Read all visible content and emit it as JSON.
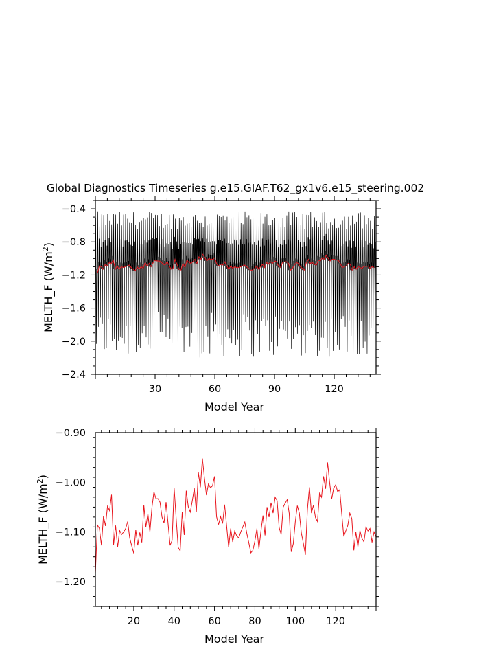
{
  "title": "Global Diagnostics Timeseries g.e15.GIAF.T62_gx1v6.e15_steering.002",
  "colors": {
    "annual": "#000000",
    "smoothed": "#e8141c",
    "axes": "#000000",
    "background": "#ffffff"
  },
  "chart_data": [
    {
      "type": "line",
      "xlabel": "Model Year",
      "ylabel": "MELTH_F (W/m²)",
      "ylabel_main": "MELTH_F  (W/m",
      "ylabel_sup": "2",
      "ylabel_close": ")",
      "xlim": [
        0,
        141
      ],
      "ylim": [
        -2.4,
        -0.3
      ],
      "xticks": [
        30,
        60,
        90,
        120
      ],
      "xtick_labels": [
        "30",
        "60",
        "90",
        "120"
      ],
      "yticks": [
        -2.4,
        -2.0,
        -1.6,
        -1.2,
        -0.8,
        -0.4
      ],
      "ytick_labels": [
        "−2.4",
        "−2.0",
        "−1.6",
        "−1.2",
        "−0.8",
        "−0.4"
      ],
      "monthly_series": {
        "note_visible": false,
        "years": 141,
        "seasonal_max_range": [
          -0.65,
          -0.43
        ],
        "seasonal_min_range": [
          -2.2,
          -1.65
        ]
      },
      "annual_series": {
        "x_start": 1,
        "values": [
          -1.18,
          -1.09,
          -1.1,
          -1.13,
          -1.07,
          -1.09,
          -1.05,
          -1.06,
          -1.02,
          -1.13,
          -1.09,
          -1.13,
          -1.1,
          -1.11,
          -1.1,
          -1.09,
          -1.08,
          -1.11,
          -1.13,
          -1.15,
          -1.1,
          -1.13,
          -1.1,
          -1.12,
          -1.05,
          -1.09,
          -1.06,
          -1.1,
          -1.05,
          -1.02,
          -1.03,
          -1.03,
          -1.04,
          -1.07,
          -1.08,
          -1.04,
          -1.08,
          -1.13,
          -1.12,
          -1.01,
          -1.07,
          -1.13,
          -1.14,
          -1.06,
          -1.11,
          -1.02,
          -1.05,
          -1.06,
          -1.04,
          -1.01,
          -1.06,
          -0.98,
          -1.01,
          -0.95,
          -0.99,
          -1.03,
          -1.0,
          -1.01,
          -1.01,
          -0.99,
          -1.07,
          -1.09,
          -1.07,
          -1.08,
          -1.04,
          -1.09,
          -1.13,
          -1.09,
          -1.12,
          -1.1,
          -1.11,
          -1.11,
          -1.1,
          -1.09,
          -1.08,
          -1.1,
          -1.12,
          -1.14,
          -1.14,
          -1.12,
          -1.09,
          -1.13,
          -1.1,
          -1.07,
          -1.11,
          -1.05,
          -1.07,
          -1.04,
          -1.06,
          -1.03,
          -1.04,
          -1.09,
          -1.11,
          -1.05,
          -1.04,
          -1.04,
          -1.06,
          -1.14,
          -1.12,
          -1.08,
          -1.05,
          -1.06,
          -1.1,
          -1.12,
          -1.14,
          -1.05,
          -1.01,
          -1.06,
          -1.05,
          -1.07,
          -1.08,
          -1.02,
          -1.03,
          -0.99,
          -1.01,
          -0.96,
          -1.0,
          -1.03,
          -1.01,
          -1.01,
          -1.02,
          -1.02,
          -1.06,
          -1.11,
          -1.1,
          -1.09,
          -1.06,
          -1.07,
          -1.14,
          -1.1,
          -1.13,
          -1.1,
          -1.11,
          -1.12,
          -1.09,
          -1.1,
          -1.09,
          -1.12,
          -1.1,
          -1.11
        ]
      }
    },
    {
      "type": "line",
      "xlabel": "Model Year",
      "ylabel": "MELTH_F (W/m²)",
      "ylabel_main": "MELTH_F  (W/m",
      "ylabel_sup": "2",
      "ylabel_close": ")",
      "xlim": [
        1,
        140
      ],
      "ylim": [
        -1.25,
        -0.9
      ],
      "xticks": [
        20,
        40,
        60,
        80,
        100,
        120
      ],
      "xtick_labels": [
        "20",
        "40",
        "60",
        "80",
        "100",
        "120"
      ],
      "yticks": [
        -1.2,
        -1.1,
        -1.0,
        -0.9
      ],
      "ytick_labels": [
        "−1.20",
        "−1.10",
        "−1.00",
        "−0.90"
      ],
      "series": [
        {
          "x_start": 1,
          "values": [
            -1.183,
            -1.086,
            -1.093,
            -1.127,
            -1.068,
            -1.088,
            -1.048,
            -1.057,
            -1.025,
            -1.126,
            -1.087,
            -1.131,
            -1.097,
            -1.105,
            -1.1,
            -1.093,
            -1.079,
            -1.112,
            -1.128,
            -1.143,
            -1.096,
            -1.127,
            -1.101,
            -1.121,
            -1.046,
            -1.09,
            -1.063,
            -1.1,
            -1.051,
            -1.019,
            -1.033,
            -1.033,
            -1.04,
            -1.07,
            -1.082,
            -1.04,
            -1.083,
            -1.127,
            -1.117,
            -1.011,
            -1.072,
            -1.131,
            -1.138,
            -1.06,
            -1.106,
            -1.017,
            -1.049,
            -1.06,
            -1.037,
            -1.012,
            -1.06,
            -0.98,
            -1.01,
            -0.952,
            -0.991,
            -1.026,
            -1.003,
            -1.011,
            -1.007,
            -0.988,
            -1.069,
            -1.085,
            -1.069,
            -1.083,
            -1.045,
            -1.088,
            -1.131,
            -1.093,
            -1.12,
            -1.098,
            -1.108,
            -1.112,
            -1.1,
            -1.09,
            -1.08,
            -1.103,
            -1.122,
            -1.142,
            -1.137,
            -1.118,
            -1.093,
            -1.134,
            -1.098,
            -1.067,
            -1.107,
            -1.05,
            -1.07,
            -1.041,
            -1.062,
            -1.03,
            -1.037,
            -1.091,
            -1.105,
            -1.05,
            -1.042,
            -1.035,
            -1.063,
            -1.14,
            -1.124,
            -1.08,
            -1.047,
            -1.062,
            -1.102,
            -1.123,
            -1.146,
            -1.055,
            -1.01,
            -1.062,
            -1.046,
            -1.071,
            -1.079,
            -1.022,
            -1.03,
            -0.988,
            -1.013,
            -0.96,
            -1.0,
            -1.034,
            -1.012,
            -1.005,
            -1.019,
            -1.015,
            -1.063,
            -1.109,
            -1.098,
            -1.087,
            -1.062,
            -1.073,
            -1.137,
            -1.1,
            -1.13,
            -1.097,
            -1.113,
            -1.12,
            -1.09,
            -1.098,
            -1.093,
            -1.121,
            -1.1,
            -1.11
          ]
        }
      ]
    }
  ]
}
